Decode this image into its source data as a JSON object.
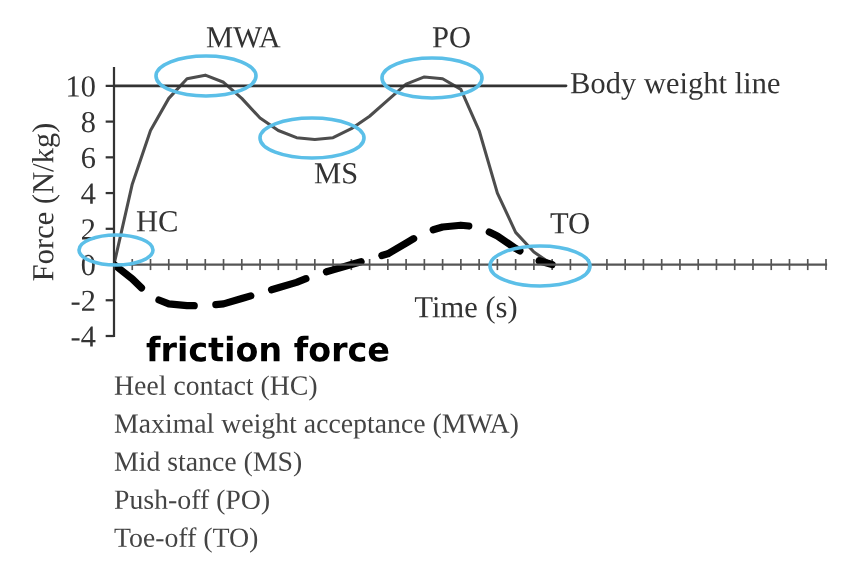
{
  "chart_data": {
    "type": "line",
    "xlabel": "Time (s)",
    "ylabel": "Force (N/kg)",
    "categories": [
      null,
      null,
      null,
      null,
      null,
      null,
      null,
      null,
      null,
      null,
      null,
      null,
      null,
      null,
      null,
      null,
      null,
      null,
      null,
      null,
      null,
      null,
      null,
      null,
      null,
      null,
      null,
      null,
      null,
      null,
      null,
      null,
      null,
      null,
      null,
      null,
      null,
      null,
      null,
      null
    ],
    "series": [
      {
        "color": "#4d4d4d",
        "line_style": "solid",
        "values": [
          0,
          4.5,
          7.5,
          9.3,
          10.4,
          10.6,
          10.2,
          9.3,
          8.2,
          7.5,
          7.1,
          7.0,
          7.1,
          7.6,
          8.3,
          9.2,
          10.1,
          10.5,
          10.4,
          9.8,
          7.5,
          4.0,
          1.8,
          0.7,
          0,
          null,
          null,
          null,
          null,
          null,
          null,
          null,
          null,
          null,
          null,
          null,
          null,
          null,
          null,
          null
        ]
      },
      {
        "name": "friction force",
        "color": "#000000",
        "line_style": "dashed",
        "values": [
          0,
          -0.8,
          -1.8,
          -2.2,
          -2.3,
          -2.3,
          -2.2,
          -1.9,
          -1.6,
          -1.3,
          -1.0,
          -0.6,
          -0.3,
          0.0,
          0.3,
          0.6,
          1.2,
          1.8,
          2.1,
          2.2,
          2.1,
          1.6,
          0.9,
          0.3,
          0,
          null,
          null,
          null,
          null,
          null,
          null,
          null,
          null,
          null,
          null,
          null,
          null,
          null,
          null,
          null
        ]
      }
    ],
    "ylim": [
      -4,
      11
    ],
    "yticks": [
      -4,
      -2,
      0,
      2,
      4,
      6,
      8,
      10
    ],
    "tick_labels": "y",
    "legend": false,
    "marker": "none",
    "ref_lines": [
      {
        "axis": "y",
        "value": 10,
        "label": "Body weight line",
        "color": "#333333"
      }
    ],
    "annotations": [
      "HC",
      "MWA",
      "MS",
      "PO",
      "TO",
      "Heel contact (HC)",
      "Maximal weight acceptance (MWA)",
      "Mid stance (MS)",
      "Push-off (PO)",
      "Toe-off (TO)"
    ]
  }
}
